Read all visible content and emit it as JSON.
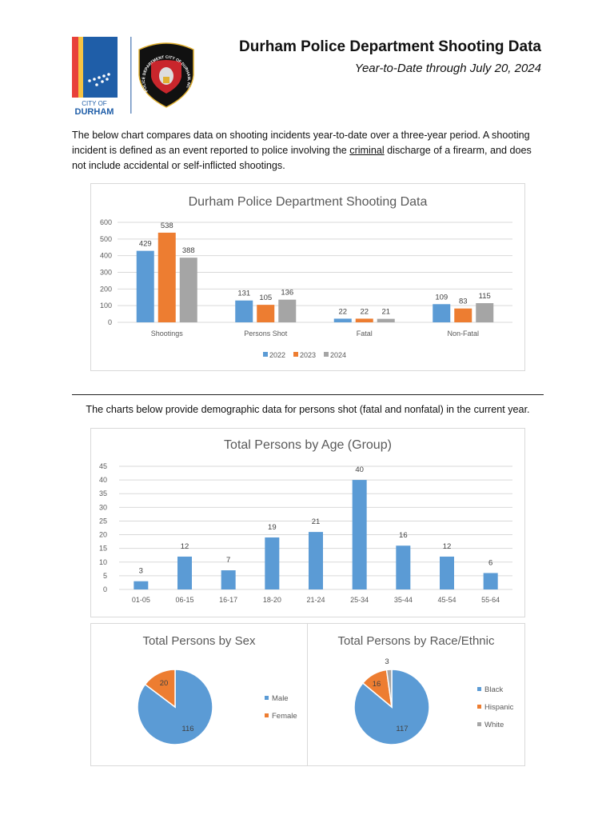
{
  "header": {
    "title": "Durham Police Department Shooting Data",
    "subtitle": "Year-to-Date through July 20, 2024",
    "city_logo_text": [
      "CITY OF",
      "DURHAM"
    ],
    "badge_text": "POLICE DEPARTMENT CITY OF DURHAM, NC"
  },
  "intro": {
    "before": "The below chart compares data on shooting incidents year-to-date over a three-year period. A shooting incident is defined as an event reported to police involving the ",
    "underlined": "criminal",
    "after": " discharge of a firearm, and does not include accidental or self-inflicted shootings."
  },
  "demographics_text": "The charts below provide demographic data for persons shot (fatal and nonfatal) in the current year.",
  "colors": {
    "blue": "#5b9bd5",
    "orange": "#ed7d31",
    "gray": "#a5a5a5"
  },
  "chart_data": [
    {
      "type": "bar",
      "title": "Durham Police Department Shooting Data",
      "categories": [
        "Shootings",
        "Persons Shot",
        "Fatal",
        "Non-Fatal"
      ],
      "series": [
        {
          "name": "2022",
          "values": [
            429,
            131,
            22,
            109
          ],
          "color": "#5b9bd5"
        },
        {
          "name": "2023",
          "values": [
            538,
            105,
            22,
            83
          ],
          "color": "#ed7d31"
        },
        {
          "name": "2024",
          "values": [
            388,
            136,
            21,
            115
          ],
          "color": "#a5a5a5"
        }
      ],
      "ylim": [
        0,
        600
      ],
      "yticks": [
        0,
        100,
        200,
        300,
        400,
        500,
        600
      ],
      "grid": true,
      "legend": "bottom"
    },
    {
      "type": "bar",
      "title": "Total Persons by Age (Group)",
      "categories": [
        "01-05",
        "06-15",
        "16-17",
        "18-20",
        "21-24",
        "25-34",
        "35-44",
        "45-54",
        "55-64"
      ],
      "values": [
        3,
        12,
        7,
        19,
        21,
        40,
        16,
        12,
        6
      ],
      "color": "#5b9bd5",
      "ylim": [
        0,
        45
      ],
      "yticks": [
        0,
        5,
        10,
        15,
        20,
        25,
        30,
        35,
        40,
        45
      ],
      "grid": true
    },
    {
      "type": "pie",
      "title": "Total Persons by Sex",
      "labels": [
        "Male",
        "Female"
      ],
      "values": [
        116,
        20
      ],
      "colors": [
        "#5b9bd5",
        "#ed7d31"
      ],
      "legend": "right"
    },
    {
      "type": "pie",
      "title": "Total Persons by Race/Ethnic",
      "labels": [
        "Black",
        "Hispanic",
        "White"
      ],
      "values": [
        117,
        16,
        3
      ],
      "colors": [
        "#5b9bd5",
        "#ed7d31",
        "#a5a5a5"
      ],
      "legend": "right"
    }
  ]
}
